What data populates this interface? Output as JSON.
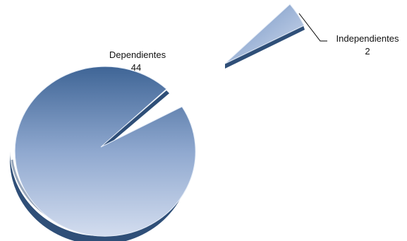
{
  "chart_data": {
    "type": "pie",
    "style": "3d-exploded",
    "title": "",
    "categories": [
      "Dependientes",
      "Independientes"
    ],
    "values": [
      44,
      2
    ],
    "labels": [
      {
        "category": "Dependientes",
        "value": "44"
      },
      {
        "category": "Independientes",
        "value": "2"
      }
    ],
    "colors": {
      "gradient_top": "#3f6596",
      "gradient_mid": "#7f9bc4",
      "gradient_bottom": "#c5d2ea",
      "side_dark": "#2f4f78",
      "edge_light": "#e7eef8",
      "leader_line": "#000000"
    },
    "legend": "none"
  }
}
